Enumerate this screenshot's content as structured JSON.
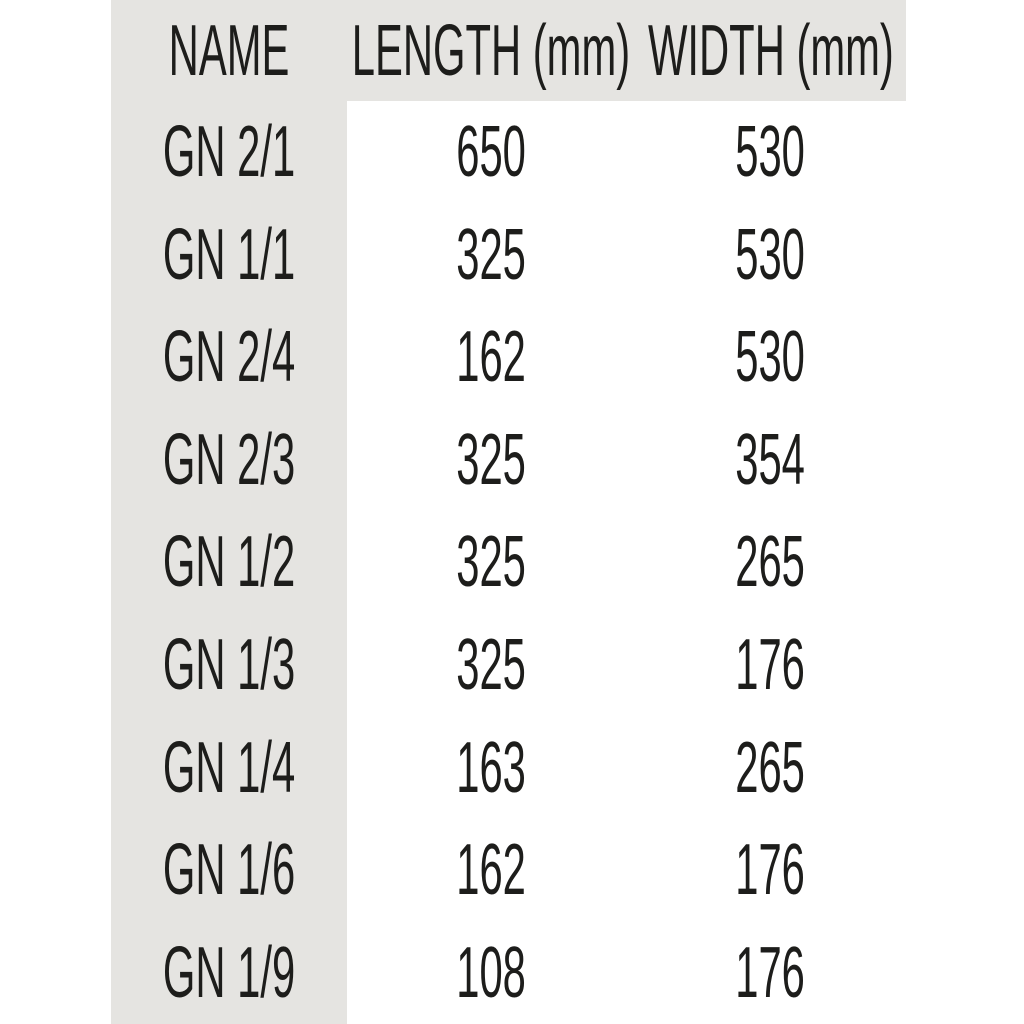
{
  "colors": {
    "band": "#e5e4e1",
    "ink": "#1d1d1b",
    "page": "#ffffff"
  },
  "chart_data": {
    "type": "table",
    "columns": [
      "NAME",
      "LENGTH (mm)",
      "WIDTH (mm)"
    ],
    "rows": [
      {
        "name": "GN 2/1",
        "length_mm": "650",
        "width_mm": "530"
      },
      {
        "name": "GN 1/1",
        "length_mm": "325",
        "width_mm": "530"
      },
      {
        "name": "GN 2/4",
        "length_mm": "162",
        "width_mm": "530"
      },
      {
        "name": "GN 2/3",
        "length_mm": "325",
        "width_mm": "354"
      },
      {
        "name": "GN 1/2",
        "length_mm": "325",
        "width_mm": "265"
      },
      {
        "name": "GN 1/3",
        "length_mm": "325",
        "width_mm": "176"
      },
      {
        "name": "GN 1/4",
        "length_mm": "163",
        "width_mm": "265"
      },
      {
        "name": "GN 1/6",
        "length_mm": "162",
        "width_mm": "176"
      },
      {
        "name": "GN 1/9",
        "length_mm": "108",
        "width_mm": "176"
      }
    ]
  }
}
